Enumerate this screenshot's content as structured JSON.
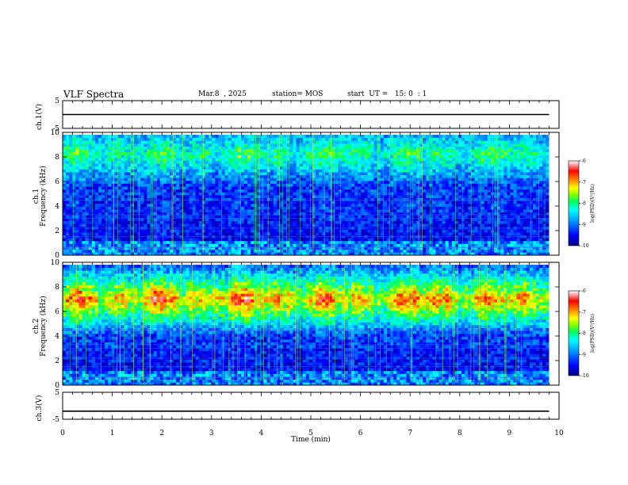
{
  "header": {
    "title": "VLF Spectra",
    "date": "Mar.8  , 2025",
    "station": "station= MOS",
    "start": "start  UT =   15: 0  : 1"
  },
  "chart_data": [
    {
      "type": "line",
      "panel": "ch1-voltage",
      "ylabel": "ch.1(V)",
      "ylim": [
        -5,
        5
      ],
      "yticks": [
        "5",
        "-5"
      ],
      "series": [
        {
          "x": [
            0,
            9.8
          ],
          "y": [
            0,
            0
          ]
        }
      ],
      "color": "#000000"
    },
    {
      "type": "heatmap",
      "panel": "ch1-spectrogram",
      "ylabel": "ch.1\nFrequency (kHz)",
      "ylim": [
        0,
        10
      ],
      "yticks": [
        "0",
        "2",
        "4",
        "6",
        "8",
        "10"
      ],
      "xlim": [
        0,
        10
      ],
      "colorbar": {
        "label": "log(PSD)(V²/Hz)",
        "range": [
          -10,
          -6
        ],
        "ticks": [
          "-6",
          "-7",
          "-8",
          "-9",
          "-10"
        ],
        "colors": [
          "#000080",
          "#0000ff",
          "#00a0ff",
          "#00ffff",
          "#00ff60",
          "#80ff00",
          "#ffff00",
          "#ff8000",
          "#ff0000",
          "#ffffff"
        ]
      },
      "band_kHz": [
        0,
        9.8
      ],
      "peak_band_kHz": [
        7,
        9.5
      ],
      "peak_level": -8.2
    },
    {
      "type": "heatmap",
      "panel": "ch2-spectrogram",
      "ylabel": "ch.2\nFrequency (kHz)",
      "ylim": [
        0,
        10
      ],
      "yticks": [
        "0",
        "2",
        "4",
        "6",
        "8",
        "10"
      ],
      "xlim": [
        0,
        10
      ],
      "colorbar": {
        "label": "log(PSD)(V²/Hz)",
        "range": [
          -10,
          -6
        ],
        "ticks": [
          "-6",
          "-7",
          "-8",
          "-9",
          "-10"
        ],
        "colors": [
          "#000080",
          "#0000ff",
          "#00a0ff",
          "#00ffff",
          "#00ff60",
          "#80ff00",
          "#ffff00",
          "#ff8000",
          "#ff0000",
          "#ffffff"
        ]
      },
      "band_kHz": [
        0,
        9.8
      ],
      "peak_band_kHz": [
        5.5,
        8.5
      ],
      "peak_level": -7.0
    },
    {
      "type": "line",
      "panel": "ch3-voltage",
      "ylabel": "ch.3(V)",
      "ylim": [
        -5,
        5
      ],
      "yticks": [
        "5",
        "-5"
      ],
      "series": [
        {
          "x": [
            0,
            9.8
          ],
          "y": [
            -2,
            -2
          ]
        }
      ],
      "color": "#000000"
    }
  ],
  "xaxis": {
    "label": "Time (min)",
    "ticks": [
      "0",
      "1",
      "2",
      "3",
      "4",
      "5",
      "6",
      "7",
      "8",
      "9",
      "10"
    ],
    "xlim": [
      0,
      10
    ]
  }
}
